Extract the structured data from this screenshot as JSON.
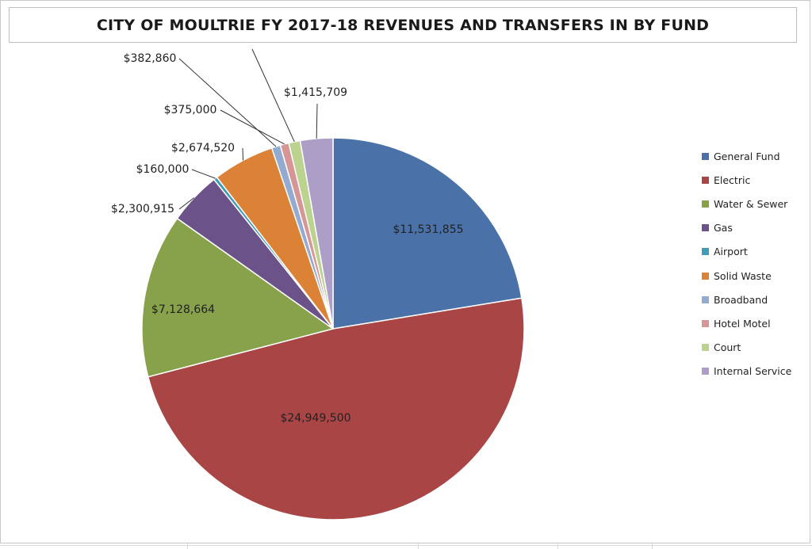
{
  "chart_data": {
    "type": "pie",
    "title": "CITY OF MOULTRIE FY 2017-18 REVENUES AND TRANSFERS IN BY FUND",
    "legend_position": "right",
    "slices": [
      {
        "name": "General Fund",
        "value": 11531855,
        "label": "$11,531,855",
        "color": "#4a72a9"
      },
      {
        "name": "Electric",
        "value": 24949500,
        "label": "$24,949,500",
        "color": "#a94545"
      },
      {
        "name": "Water & Sewer",
        "value": 7128664,
        "label": "$7,128,664",
        "color": "#87a24a"
      },
      {
        "name": "Gas",
        "value": 2300915,
        "label": "$2,300,915",
        "color": "#6b5289"
      },
      {
        "name": "Airport",
        "value": 160000,
        "label": "$160,000",
        "color": "#3f9cb7"
      },
      {
        "name": "Solid Waste",
        "value": 2674520,
        "label": "$2,674,520",
        "color": "#dc8236"
      },
      {
        "name": "Broadband",
        "value": 382860,
        "label": "$382,860",
        "color": "#93aad1"
      },
      {
        "name": "Hotel Motel",
        "value": 375000,
        "label": "$375,000",
        "color": "#d69695"
      },
      {
        "name": "Court",
        "value": 500000,
        "label": "",
        "color": "#bcd38f"
      },
      {
        "name": "Internal Service",
        "value": 1415709,
        "label": "$1,415,709",
        "color": "#ad9ec8"
      }
    ]
  }
}
